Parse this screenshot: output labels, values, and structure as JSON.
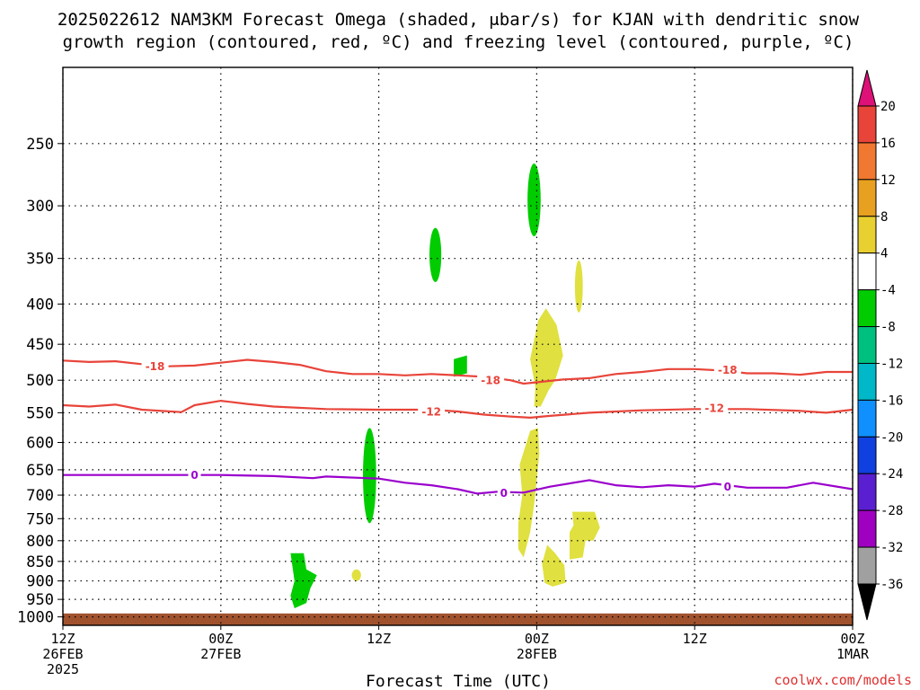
{
  "chart_data": {
    "type": "time-height cross-section",
    "title_lines": [
      "2025022612 NAM3KM Forecast Omega (shaded, μbar/s) for KJAN with dendritic snow",
      "growth region (contoured, red, ºC) and freezing level (contoured, purple, ºC)"
    ],
    "xlabel": "Forecast Time (UTC)",
    "credit": "coolwx.com/models",
    "pressure_ticks": [
      250,
      300,
      350,
      400,
      450,
      500,
      550,
      600,
      650,
      700,
      750,
      800,
      850,
      900,
      950,
      1000
    ],
    "pressure_range": [
      200,
      1025
    ],
    "x_range_hours": [
      0,
      60
    ],
    "x_ticks": [
      {
        "hour": 0,
        "label": "12Z",
        "sub": "26FEB",
        "sub2": "2025"
      },
      {
        "hour": 12,
        "label": "00Z",
        "sub": "27FEB",
        "sub2": ""
      },
      {
        "hour": 24,
        "label": "12Z",
        "sub": "",
        "sub2": ""
      },
      {
        "hour": 36,
        "label": "00Z",
        "sub": "28FEB",
        "sub2": ""
      },
      {
        "hour": 48,
        "label": "12Z",
        "sub": "",
        "sub2": ""
      },
      {
        "hour": 60,
        "label": "00Z",
        "sub": "1MAR",
        "sub2": ""
      }
    ],
    "grid": true,
    "contours": [
      {
        "name": "-18",
        "color": "#e8443a",
        "points": [
          [
            0,
            472
          ],
          [
            2,
            474
          ],
          [
            4,
            473
          ],
          [
            6,
            477
          ],
          [
            8,
            480
          ],
          [
            10,
            479
          ],
          [
            12,
            475
          ],
          [
            14,
            471
          ],
          [
            16,
            474
          ],
          [
            18,
            478
          ],
          [
            20,
            487
          ],
          [
            22,
            491
          ],
          [
            24,
            491
          ],
          [
            26,
            493
          ],
          [
            28,
            491
          ],
          [
            30,
            493
          ],
          [
            32,
            495
          ],
          [
            34,
            500
          ],
          [
            35,
            505
          ],
          [
            36,
            503
          ],
          [
            38,
            499
          ],
          [
            40,
            497
          ],
          [
            42,
            491
          ],
          [
            44,
            488
          ],
          [
            46,
            484
          ],
          [
            48,
            484
          ],
          [
            50,
            486
          ],
          [
            52,
            490
          ],
          [
            54,
            490
          ],
          [
            56,
            492
          ],
          [
            58,
            488
          ],
          [
            60,
            488
          ]
        ],
        "labels": [
          {
            "hour": 7,
            "p": 480
          },
          {
            "hour": 32.5,
            "p": 500
          },
          {
            "hour": 50.5,
            "p": 485
          }
        ]
      },
      {
        "name": "-12",
        "color": "#e8443a",
        "points": [
          [
            0,
            538
          ],
          [
            2,
            540
          ],
          [
            4,
            537
          ],
          [
            6,
            545
          ],
          [
            9,
            549
          ],
          [
            10,
            538
          ],
          [
            12,
            531
          ],
          [
            14,
            536
          ],
          [
            16,
            540
          ],
          [
            20,
            544
          ],
          [
            24,
            545
          ],
          [
            28,
            545
          ],
          [
            30,
            548
          ],
          [
            32,
            553
          ],
          [
            34,
            556
          ],
          [
            35.5,
            558
          ],
          [
            37,
            555
          ],
          [
            40,
            550
          ],
          [
            44,
            546
          ],
          [
            48,
            544
          ],
          [
            52,
            544
          ],
          [
            56,
            547
          ],
          [
            58,
            550
          ],
          [
            60,
            545
          ]
        ],
        "labels": [
          {
            "hour": 28,
            "p": 548
          },
          {
            "hour": 49.5,
            "p": 542
          }
        ]
      },
      {
        "name": "0",
        "color": "#9a00cc",
        "points": [
          [
            0,
            660
          ],
          [
            4,
            660
          ],
          [
            8,
            660
          ],
          [
            12,
            660
          ],
          [
            16,
            662
          ],
          [
            19,
            666
          ],
          [
            20,
            663
          ],
          [
            24,
            667
          ],
          [
            26,
            675
          ],
          [
            28,
            680
          ],
          [
            30,
            688
          ],
          [
            31.5,
            697
          ],
          [
            33,
            693
          ],
          [
            35,
            695
          ],
          [
            37,
            683
          ],
          [
            40,
            670
          ],
          [
            42,
            680
          ],
          [
            44,
            684
          ],
          [
            46,
            680
          ],
          [
            48,
            683
          ],
          [
            49.5,
            677
          ],
          [
            52,
            685
          ],
          [
            55,
            685
          ],
          [
            57,
            675
          ],
          [
            60,
            688
          ]
        ],
        "labels": [
          {
            "hour": 10,
            "p": 660
          },
          {
            "hour": 33.5,
            "p": 695
          },
          {
            "hour": 50.5,
            "p": 683
          }
        ]
      }
    ],
    "omega_regions": [
      {
        "color": "#00cc00",
        "type": "ellipse",
        "hour": 35.8,
        "p_top": 265,
        "p_bottom": 328,
        "half_width_hours": 0.5
      },
      {
        "color": "#00cc00",
        "type": "ellipse",
        "hour": 28.3,
        "p_top": 320,
        "p_bottom": 375,
        "half_width_hours": 0.45
      },
      {
        "color": "#00cc00",
        "type": "ellipse",
        "hour": 23.3,
        "p_top": 575,
        "p_bottom": 760,
        "half_width_hours": 0.5
      },
      {
        "color": "#00cc00",
        "type": "poly",
        "points": [
          [
            29.7,
            470
          ],
          [
            30.7,
            465
          ],
          [
            30.7,
            490
          ],
          [
            29.7,
            495
          ]
        ]
      },
      {
        "color": "#00cc00",
        "type": "poly",
        "points": [
          [
            17.3,
            830
          ],
          [
            18.3,
            830
          ],
          [
            18.5,
            870
          ],
          [
            19.3,
            885
          ],
          [
            18.8,
            920
          ],
          [
            18.5,
            960
          ],
          [
            17.6,
            975
          ],
          [
            17.3,
            940
          ],
          [
            17.6,
            900
          ]
        ]
      },
      {
        "color": "#e0e040",
        "type": "ellipse",
        "hour": 39.2,
        "p_top": 352,
        "p_bottom": 410,
        "half_width_hours": 0.3
      },
      {
        "color": "#e0e040",
        "type": "poly",
        "points": [
          [
            36.1,
            420
          ],
          [
            36.7,
            405
          ],
          [
            37.5,
            425
          ],
          [
            38.0,
            465
          ],
          [
            37.4,
            500
          ],
          [
            36.9,
            515
          ],
          [
            36.3,
            540
          ],
          [
            35.8,
            540
          ],
          [
            35.9,
            510
          ],
          [
            35.5,
            470
          ]
        ]
      },
      {
        "color": "#e0e040",
        "type": "poly",
        "points": [
          [
            35.5,
            580
          ],
          [
            36.1,
            575
          ],
          [
            36.2,
            620
          ],
          [
            36.0,
            670
          ],
          [
            35.8,
            720
          ],
          [
            35.5,
            780
          ],
          [
            35.0,
            840
          ],
          [
            34.6,
            820
          ],
          [
            34.6,
            760
          ],
          [
            34.9,
            700
          ],
          [
            34.7,
            640
          ]
        ]
      },
      {
        "color": "#e0e040",
        "type": "poly",
        "points": [
          [
            38.7,
            735
          ],
          [
            40.4,
            735
          ],
          [
            40.8,
            770
          ],
          [
            40.3,
            800
          ],
          [
            39.7,
            800
          ],
          [
            39.5,
            840
          ],
          [
            38.5,
            845
          ],
          [
            38.5,
            780
          ],
          [
            38.8,
            765
          ]
        ]
      },
      {
        "color": "#e0e040",
        "type": "poly",
        "points": [
          [
            36.8,
            810
          ],
          [
            37.4,
            830
          ],
          [
            38.1,
            860
          ],
          [
            38.2,
            905
          ],
          [
            37.2,
            915
          ],
          [
            36.6,
            905
          ],
          [
            36.4,
            855
          ]
        ]
      },
      {
        "color": "#e0e040",
        "type": "ellipse",
        "hour": 22.3,
        "p_top": 870,
        "p_bottom": 900,
        "half_width_hours": 0.35
      }
    ],
    "ground_color": "#a0522d",
    "ground_p_top": 990,
    "colorbar": {
      "top_arrow_color": "#dd1177",
      "bottom_arrow_color": "#000000",
      "segments": [
        "#e8443a",
        "#f07830",
        "#e8a020",
        "#e8d030",
        "#ffffff",
        "#00cc00",
        "#00c080",
        "#00b8c8",
        "#1090ff",
        "#1040e0",
        "#5a1fd0",
        "#a000c0",
        "#a0a0a0"
      ],
      "labels": [
        "20",
        "16",
        "12",
        "8",
        "4",
        "-4",
        "-8",
        "-12",
        "-16",
        "-20",
        "-24",
        "-28",
        "-32",
        "-36"
      ]
    }
  }
}
